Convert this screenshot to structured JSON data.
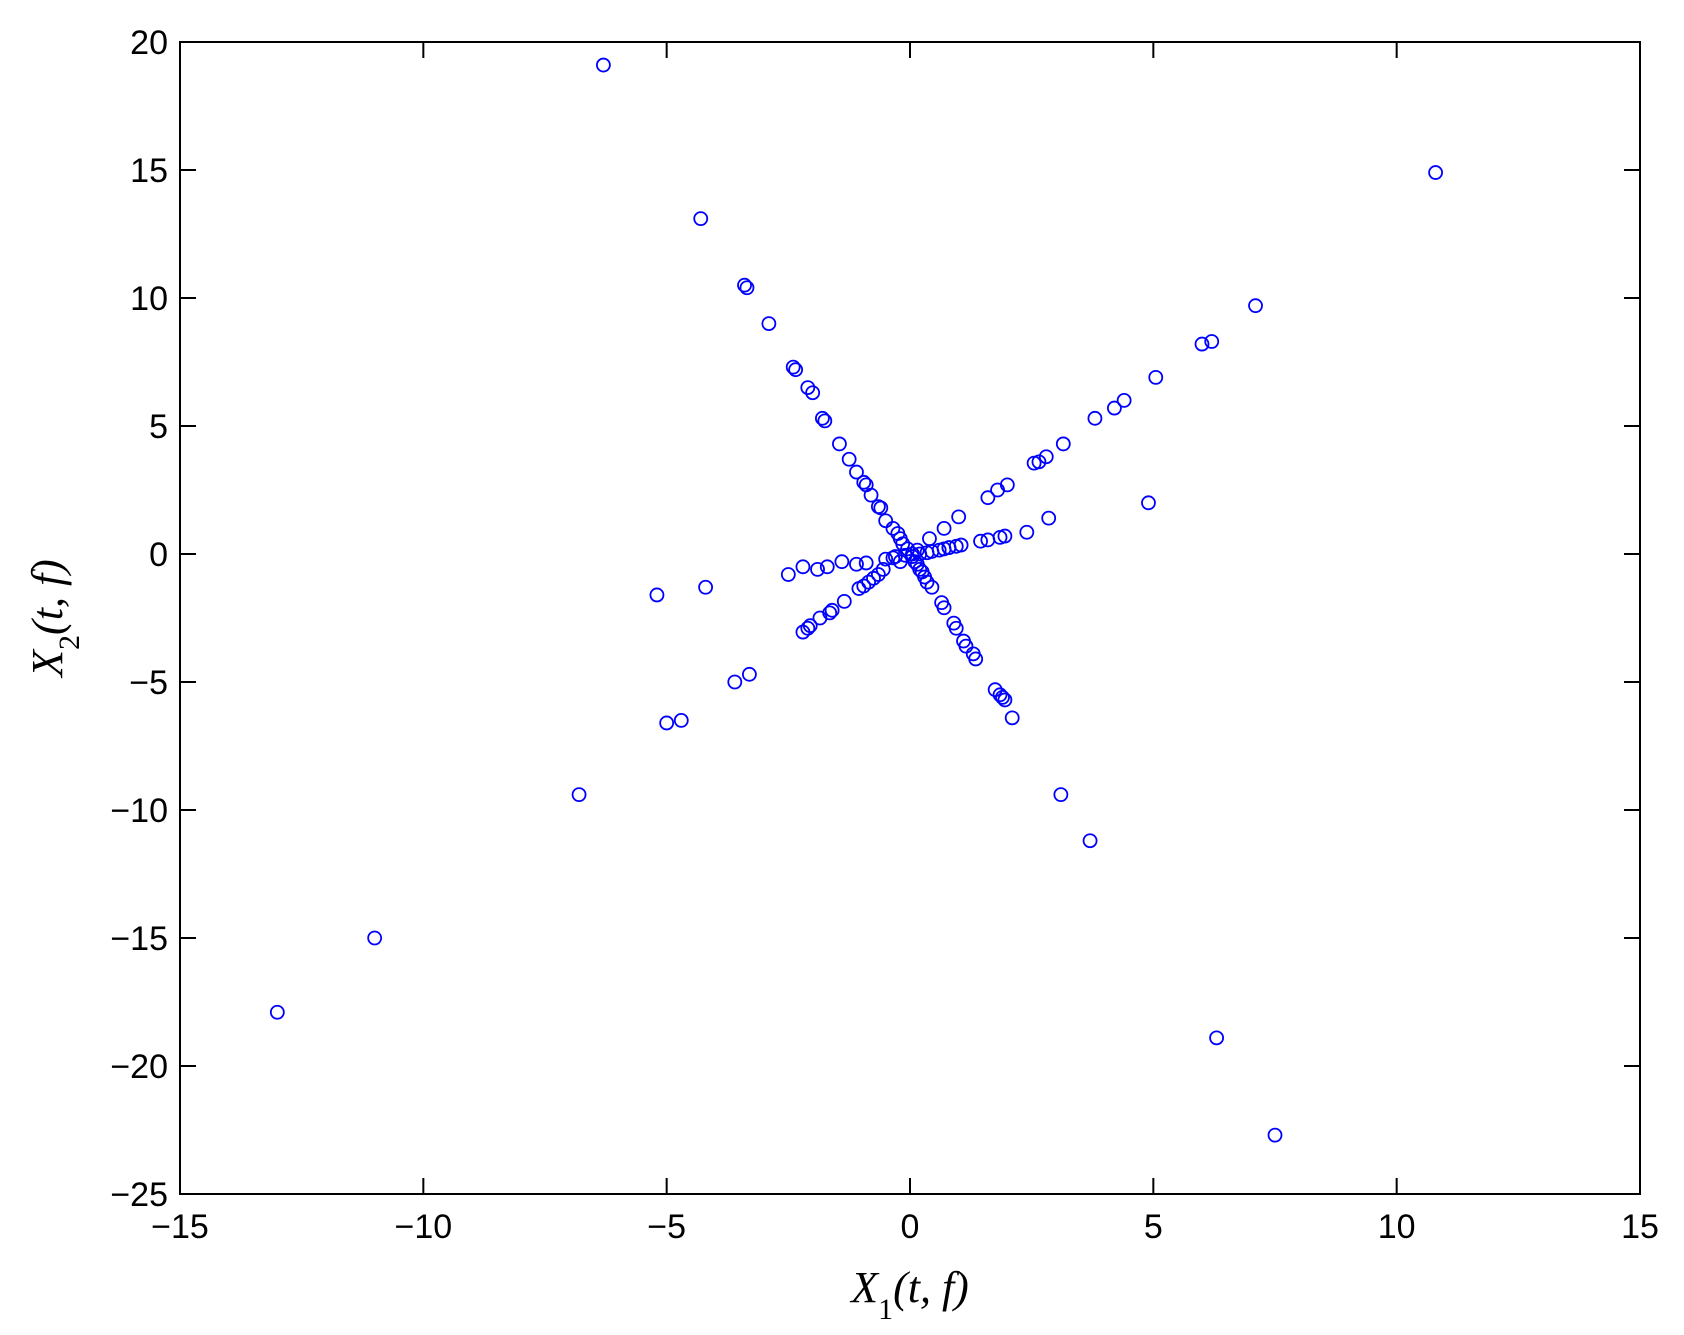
{
  "chart_data": {
    "type": "scatter",
    "title": "",
    "xlabel": "X1(t, f)",
    "ylabel": "X2(t, f)",
    "xlim": [
      -15,
      15
    ],
    "ylim": [
      -25,
      20
    ],
    "xticks": [
      -15,
      -10,
      -5,
      0,
      5,
      10,
      15
    ],
    "yticks": [
      -25,
      -20,
      -15,
      -10,
      -5,
      0,
      5,
      10,
      15,
      20
    ],
    "xtick_labels": [
      "−15",
      "−10",
      "−5",
      "0",
      "5",
      "10",
      "15"
    ],
    "ytick_labels": [
      "−25",
      "−20",
      "−15",
      "−10",
      "−5",
      "0",
      "5",
      "10",
      "15",
      "20"
    ],
    "grid": false,
    "marker": "open-circle",
    "color": "#0000ff",
    "series": [
      {
        "points": [
          [
            -6.3,
            19.1
          ],
          [
            -4.3,
            13.1
          ],
          [
            -3.4,
            10.5
          ],
          [
            -3.35,
            10.4
          ],
          [
            -2.9,
            9.0
          ],
          [
            -2.4,
            7.3
          ],
          [
            -2.35,
            7.2
          ],
          [
            -2.1,
            6.5
          ],
          [
            -2.0,
            6.3
          ],
          [
            -1.8,
            5.3
          ],
          [
            -1.75,
            5.2
          ],
          [
            -1.45,
            4.3
          ],
          [
            -1.25,
            3.7
          ],
          [
            -1.1,
            3.2
          ],
          [
            -0.95,
            2.8
          ],
          [
            -0.9,
            2.7
          ],
          [
            -0.8,
            2.3
          ],
          [
            -0.65,
            1.85
          ],
          [
            -0.6,
            1.8
          ],
          [
            -0.5,
            1.3
          ],
          [
            -0.35,
            1.0
          ],
          [
            -0.25,
            0.8
          ],
          [
            -0.2,
            0.6
          ],
          [
            -0.15,
            0.4
          ],
          [
            -0.05,
            0.2
          ],
          [
            0.05,
            -0.1
          ],
          [
            0.1,
            -0.3
          ],
          [
            0.15,
            -0.4
          ],
          [
            0.2,
            -0.6
          ],
          [
            0.3,
            -0.9
          ],
          [
            0.35,
            -1.1
          ],
          [
            0.45,
            -1.3
          ],
          [
            0.65,
            -1.9
          ],
          [
            0.7,
            -2.1
          ],
          [
            0.9,
            -2.7
          ],
          [
            0.95,
            -2.9
          ],
          [
            1.1,
            -3.4
          ],
          [
            1.15,
            -3.6
          ],
          [
            1.3,
            -3.9
          ],
          [
            1.35,
            -4.1
          ],
          [
            1.75,
            -5.3
          ],
          [
            1.85,
            -5.5
          ],
          [
            1.9,
            -5.6
          ],
          [
            1.95,
            -5.7
          ],
          [
            2.1,
            -6.4
          ],
          [
            3.1,
            -9.4
          ],
          [
            3.7,
            -11.2
          ],
          [
            6.3,
            -18.9
          ],
          [
            7.5,
            -22.7
          ],
          [
            10.8,
            14.9
          ],
          [
            7.1,
            9.7
          ],
          [
            6.2,
            8.3
          ],
          [
            6.0,
            8.2
          ],
          [
            5.05,
            6.9
          ],
          [
            4.4,
            6.0
          ],
          [
            4.2,
            5.7
          ],
          [
            3.8,
            5.3
          ],
          [
            3.15,
            4.3
          ],
          [
            2.8,
            3.8
          ],
          [
            2.65,
            3.6
          ],
          [
            2.55,
            3.55
          ],
          [
            2.0,
            2.7
          ],
          [
            1.8,
            2.5
          ],
          [
            1.6,
            2.2
          ],
          [
            4.9,
            2.0
          ],
          [
            2.85,
            1.4
          ],
          [
            2.4,
            0.85
          ],
          [
            1.95,
            0.7
          ],
          [
            1.85,
            0.65
          ],
          [
            1.6,
            0.55
          ],
          [
            1.45,
            0.5
          ],
          [
            1.05,
            0.35
          ],
          [
            0.95,
            0.3
          ],
          [
            0.8,
            0.25
          ],
          [
            0.7,
            0.2
          ],
          [
            0.6,
            0.15
          ],
          [
            0.45,
            0.1
          ],
          [
            0.35,
            0.05
          ],
          [
            0.2,
            0.0
          ],
          [
            -0.1,
            -0.05
          ],
          [
            -0.35,
            -0.15
          ],
          [
            -0.5,
            -0.2
          ],
          [
            -1.1,
            -0.4
          ],
          [
            -1.4,
            -0.3
          ],
          [
            -1.7,
            -0.5
          ],
          [
            -1.9,
            -0.6
          ],
          [
            -2.2,
            -0.5
          ],
          [
            -2.5,
            -0.8
          ],
          [
            -0.3,
            -0.1
          ],
          [
            -0.55,
            -0.6
          ],
          [
            -0.65,
            -0.8
          ],
          [
            -0.75,
            -0.95
          ],
          [
            -0.85,
            -1.1
          ],
          [
            -0.95,
            -1.25
          ],
          [
            -1.05,
            -1.35
          ],
          [
            -1.35,
            -1.85
          ],
          [
            -1.6,
            -2.2
          ],
          [
            -1.65,
            -2.3
          ],
          [
            -1.85,
            -2.5
          ],
          [
            -2.05,
            -2.8
          ],
          [
            -2.1,
            -2.9
          ],
          [
            -2.2,
            -3.05
          ],
          [
            -3.3,
            -4.7
          ],
          [
            -3.6,
            -5.0
          ],
          [
            -4.7,
            -6.5
          ],
          [
            -5.0,
            -6.6
          ],
          [
            -6.8,
            -9.4
          ],
          [
            -11.0,
            -15.0
          ],
          [
            -13.0,
            -17.9
          ],
          [
            -5.2,
            -1.6
          ],
          [
            -4.2,
            -1.3
          ],
          [
            0.7,
            1.0
          ],
          [
            1.0,
            1.45
          ],
          [
            0.8,
            0.25
          ],
          [
            -0.9,
            -0.35
          ],
          [
            0.4,
            0.6
          ],
          [
            0.15,
            0.15
          ],
          [
            0.05,
            0.0
          ],
          [
            -0.2,
            -0.3
          ],
          [
            0.25,
            -0.7
          ]
        ]
      }
    ]
  }
}
